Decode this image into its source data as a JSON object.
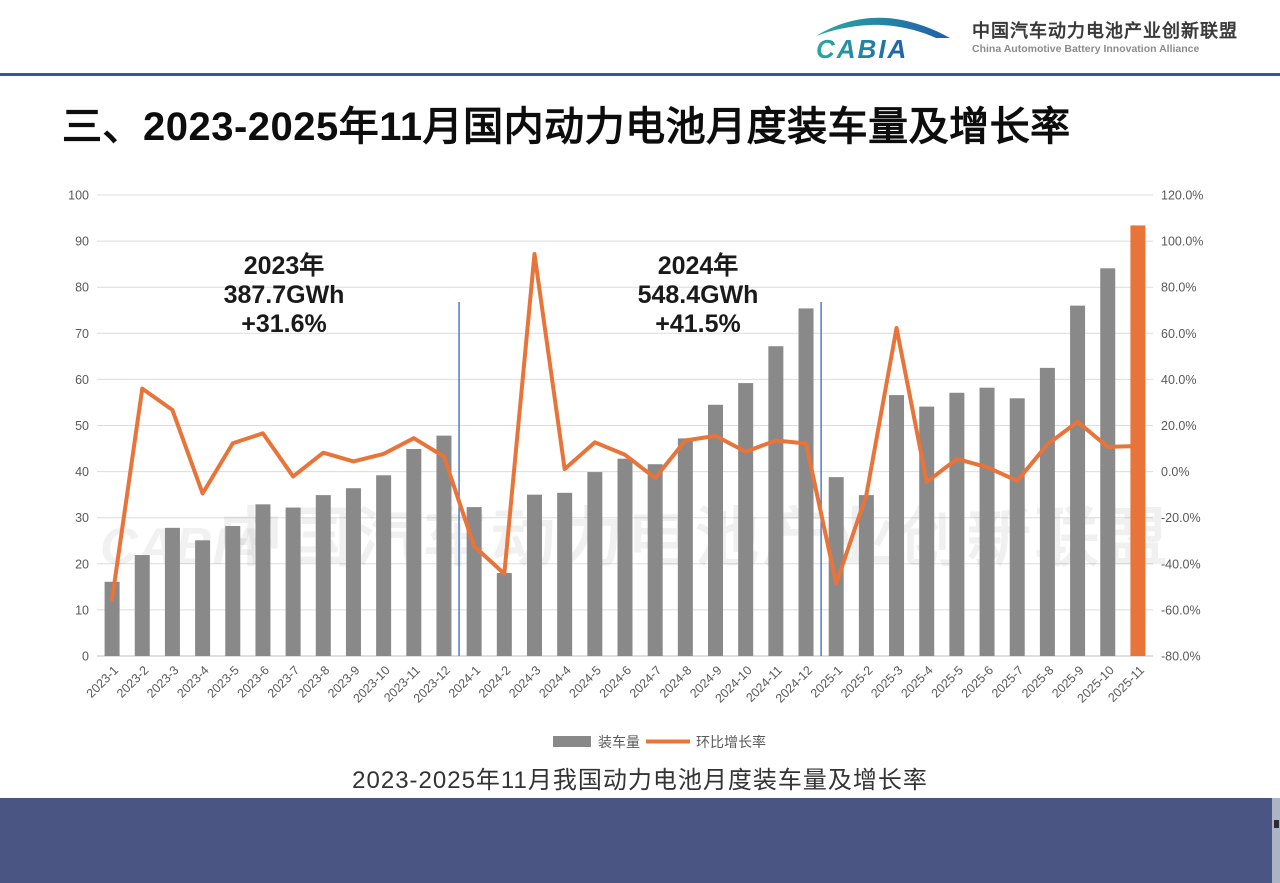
{
  "header": {
    "logo_text": "CABIA",
    "org_name_cn": "中国汽车动力电池产业创新联盟",
    "org_name_en": "China Automotive Battery Innovation Alliance"
  },
  "title": "三、2023-2025年11月国内动力电池月度装车量及增长率",
  "caption": "2023-2025年11月我国动力电池月度装车量及增长率",
  "watermark": {
    "logo_text": "CABIA",
    "text": "中国汽车动力电池产业创新联盟"
  },
  "legend": {
    "bar_label": "装车量",
    "line_label": "环比增长率"
  },
  "colors": {
    "bar": "#898989",
    "accent_orange": "#E8743A",
    "separator_blue": "#4472C4",
    "gridline": "#DCDCDC",
    "axis_line": "#BFBFBF",
    "axis_text": "#595959",
    "header_rule": "#3356A3",
    "footer": "#4A5584",
    "logo_teal": "#2AA9A2",
    "logo_blue": "#1F5FA8"
  },
  "chart_data": {
    "type": "bar+line",
    "title": "2023-2025年11月国内动力电池月度装车量及增长率",
    "categories": [
      "2023-1",
      "2023-2",
      "2023-3",
      "2023-4",
      "2023-5",
      "2023-6",
      "2023-7",
      "2023-8",
      "2023-9",
      "2023-10",
      "2023-11",
      "2023-12",
      "2024-1",
      "2024-2",
      "2024-3",
      "2024-4",
      "2024-5",
      "2024-6",
      "2024-7",
      "2024-8",
      "2024-9",
      "2024-10",
      "2024-11",
      "2024-12",
      "2025-1",
      "2025-2",
      "2025-3",
      "2025-4",
      "2025-5",
      "2025-6",
      "2025-7",
      "2025-8",
      "2025-9",
      "2025-10",
      "2025-11"
    ],
    "series": [
      {
        "name": "装车量",
        "type": "bar",
        "axis": "left",
        "unit": "GWh",
        "values": [
          16.1,
          21.9,
          27.8,
          25.1,
          28.2,
          32.9,
          32.2,
          34.9,
          36.4,
          39.2,
          44.9,
          47.8,
          32.3,
          18.0,
          35.0,
          35.4,
          39.9,
          42.8,
          41.6,
          47.2,
          54.5,
          59.2,
          67.2,
          75.4,
          38.8,
          34.9,
          56.6,
          54.1,
          57.1,
          58.2,
          55.9,
          62.5,
          76.0,
          84.1,
          93.4
        ]
      },
      {
        "name": "环比增长率",
        "type": "line",
        "axis": "right",
        "unit": "%",
        "values": [
          -55.4,
          36.0,
          26.7,
          -9.5,
          12.3,
          16.6,
          -2.1,
          8.2,
          4.4,
          7.7,
          14.5,
          6.5,
          -32.4,
          -44.3,
          94.4,
          1.1,
          12.7,
          7.3,
          -2.8,
          13.5,
          15.5,
          8.6,
          13.5,
          12.2,
          -48.6,
          -10.1,
          62.3,
          -4.5,
          5.5,
          1.9,
          -4.0,
          11.8,
          21.6,
          10.7,
          11.1
        ]
      }
    ],
    "left_axis": {
      "min": 0,
      "max": 100,
      "step": 10
    },
    "right_axis": {
      "min": -80,
      "max": 120,
      "step": 20,
      "suffix": "%",
      "decimals": 1
    },
    "grid": true,
    "legend_position": "bottom",
    "highlight_last_bar": true,
    "separator_after_indices": [
      11,
      23
    ],
    "annotations": [
      {
        "lines": [
          "2023年",
          "387.7GWh",
          "+31.6%"
        ]
      },
      {
        "lines": [
          "2024年",
          "548.4GWh",
          "+41.5%"
        ]
      }
    ]
  }
}
